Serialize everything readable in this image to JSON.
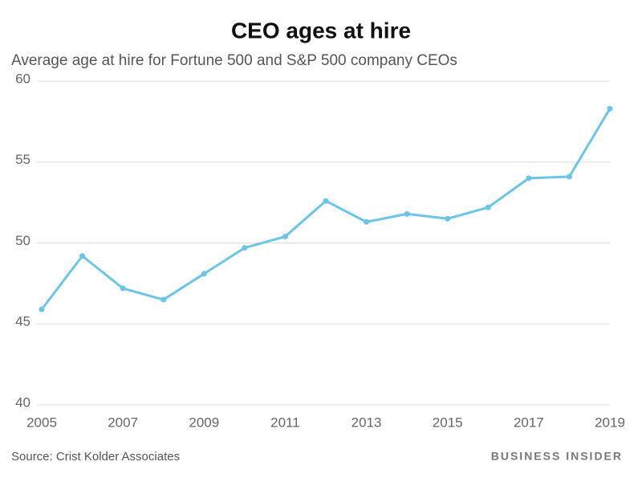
{
  "chart_data": {
    "type": "line",
    "title": "CEO ages at hire",
    "subtitle": "Average age at hire for Fortune 500 and S&P 500 company CEOs",
    "x": [
      2005,
      2006,
      2007,
      2008,
      2009,
      2010,
      2011,
      2012,
      2013,
      2014,
      2015,
      2016,
      2017,
      2018,
      2019
    ],
    "series": [
      {
        "name": "Average age at hire",
        "color": "#6ac5e8",
        "values": [
          45.9,
          49.2,
          47.2,
          46.5,
          48.1,
          49.7,
          50.4,
          52.6,
          51.3,
          51.8,
          51.5,
          52.2,
          54.0,
          54.1,
          58.3
        ]
      }
    ],
    "xlim": [
      2005,
      2019
    ],
    "xticks": [
      2005,
      2007,
      2009,
      2011,
      2013,
      2015,
      2017,
      2019
    ],
    "ylim": [
      40,
      60
    ],
    "yticks": [
      40,
      45,
      50,
      55,
      60
    ],
    "grid": true,
    "source": "Source: Crist Kolder Associates",
    "brand": "BUSINESS INSIDER"
  }
}
